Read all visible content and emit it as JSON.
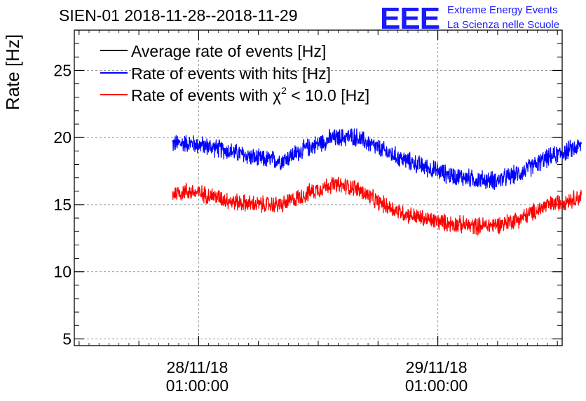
{
  "header": {
    "title": "SIEN-01 2018-11-28--2018-11-29"
  },
  "logo": {
    "mark": "EEE",
    "line1": "Extreme Energy Events",
    "line2": "La Scienza nelle Scuole",
    "color": "#1a1aff"
  },
  "chart_data": {
    "type": "line",
    "title": "SIEN-01 2018-11-28--2018-11-29",
    "ylabel": "Rate [Hz]",
    "xlabel": "",
    "ylim": [
      4.5,
      28
    ],
    "xlim": [
      -0.52,
      1.52
    ],
    "grid": true,
    "legend_position": "top-left",
    "yticks": [
      5,
      10,
      15,
      20,
      25
    ],
    "xticks": [
      {
        "value": 0,
        "label_date": "28/11/18",
        "label_time": "01:00:00"
      },
      {
        "value": 1,
        "label_date": "29/11/18",
        "label_time": "01:00:00"
      }
    ],
    "x_unit": "days since 28/11/18 01:00:00",
    "series": [
      {
        "name": "Average rate of events [Hz]",
        "color": "#000000",
        "points": []
      },
      {
        "name": "Rate of events with hits [Hz]",
        "color": "#0000ff",
        "x": [
          -0.12,
          -0.05,
          0.05,
          0.15,
          0.25,
          0.35,
          0.45,
          0.55,
          0.65,
          0.75,
          0.85,
          0.95,
          1.05,
          1.15,
          1.25,
          1.35,
          1.45,
          1.6
        ],
        "values": [
          19.5,
          19.6,
          19.3,
          18.9,
          18.4,
          18.3,
          19.2,
          19.9,
          20.1,
          19.2,
          18.4,
          17.8,
          17.2,
          16.9,
          16.8,
          17.4,
          18.4,
          19.4
        ],
        "noise": 0.75
      },
      {
        "name_prefix": "Rate of events with ",
        "name_symbol": "χ",
        "name_exp": "2",
        "name_suffix": " < 10.0 [Hz]",
        "color": "#ff0000",
        "x": [
          -0.12,
          -0.05,
          0.05,
          0.15,
          0.25,
          0.35,
          0.45,
          0.55,
          0.65,
          0.75,
          0.85,
          0.95,
          1.05,
          1.15,
          1.25,
          1.35,
          1.45,
          1.6
        ],
        "values": [
          15.8,
          16.0,
          15.7,
          15.2,
          15.0,
          15.0,
          15.8,
          16.5,
          16.3,
          15.2,
          14.4,
          13.9,
          13.6,
          13.4,
          13.5,
          14.0,
          14.9,
          15.6
        ],
        "noise": 0.7
      }
    ]
  }
}
